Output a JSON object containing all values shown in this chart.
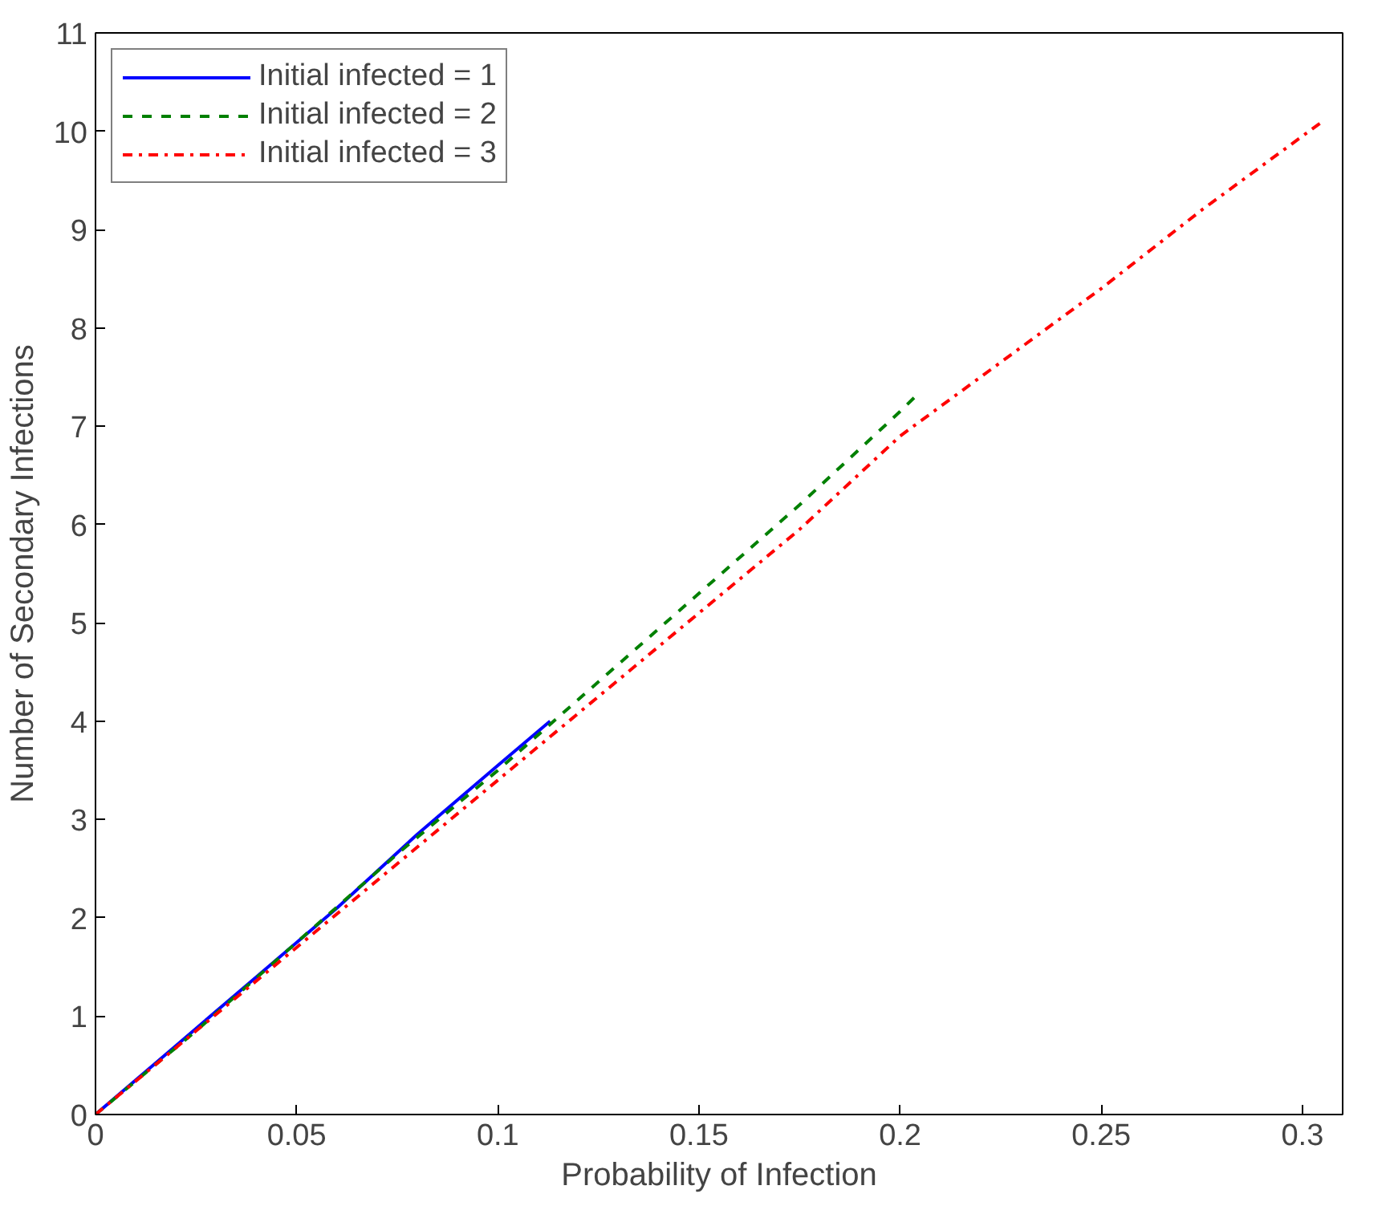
{
  "chart_data": {
    "type": "line",
    "xlabel": "Probability of Infection",
    "ylabel": "Number of Secondary Infections",
    "xlim": [
      0,
      0.31
    ],
    "ylim": [
      0,
      11
    ],
    "xticks": [
      0,
      0.05,
      0.1,
      0.15,
      0.2,
      0.25,
      0.3
    ],
    "yticks": [
      0,
      1,
      2,
      3,
      4,
      5,
      6,
      7,
      8,
      9,
      10,
      11
    ],
    "grid": false,
    "legend": "top left",
    "marker": "none",
    "series": [
      {
        "name": "Initial infected = 1",
        "color": "#0000ff",
        "line_style": "solid",
        "x": [
          0,
          0.02,
          0.04,
          0.06,
          0.08,
          0.1,
          0.113
        ],
        "values": [
          0,
          0.7,
          1.4,
          2.1,
          2.85,
          3.55,
          4.0
        ]
      },
      {
        "name": "Initial infected = 2",
        "color": "#008000",
        "line_style": "dashed",
        "x": [
          0,
          0.025,
          0.05,
          0.075,
          0.1,
          0.125,
          0.15,
          0.175,
          0.2,
          0.205
        ],
        "values": [
          0,
          0.85,
          1.75,
          2.65,
          3.5,
          4.4,
          5.3,
          6.2,
          7.15,
          7.35
        ]
      },
      {
        "name": "Initial infected = 3",
        "color": "#ff0000",
        "line_style": "dashdot",
        "x": [
          0,
          0.025,
          0.05,
          0.075,
          0.1,
          0.125,
          0.15,
          0.175,
          0.2,
          0.225,
          0.25,
          0.275,
          0.305
        ],
        "values": [
          0,
          0.85,
          1.7,
          2.55,
          3.4,
          4.25,
          5.1,
          5.95,
          6.9,
          7.65,
          8.4,
          9.2,
          10.1
        ]
      }
    ]
  }
}
